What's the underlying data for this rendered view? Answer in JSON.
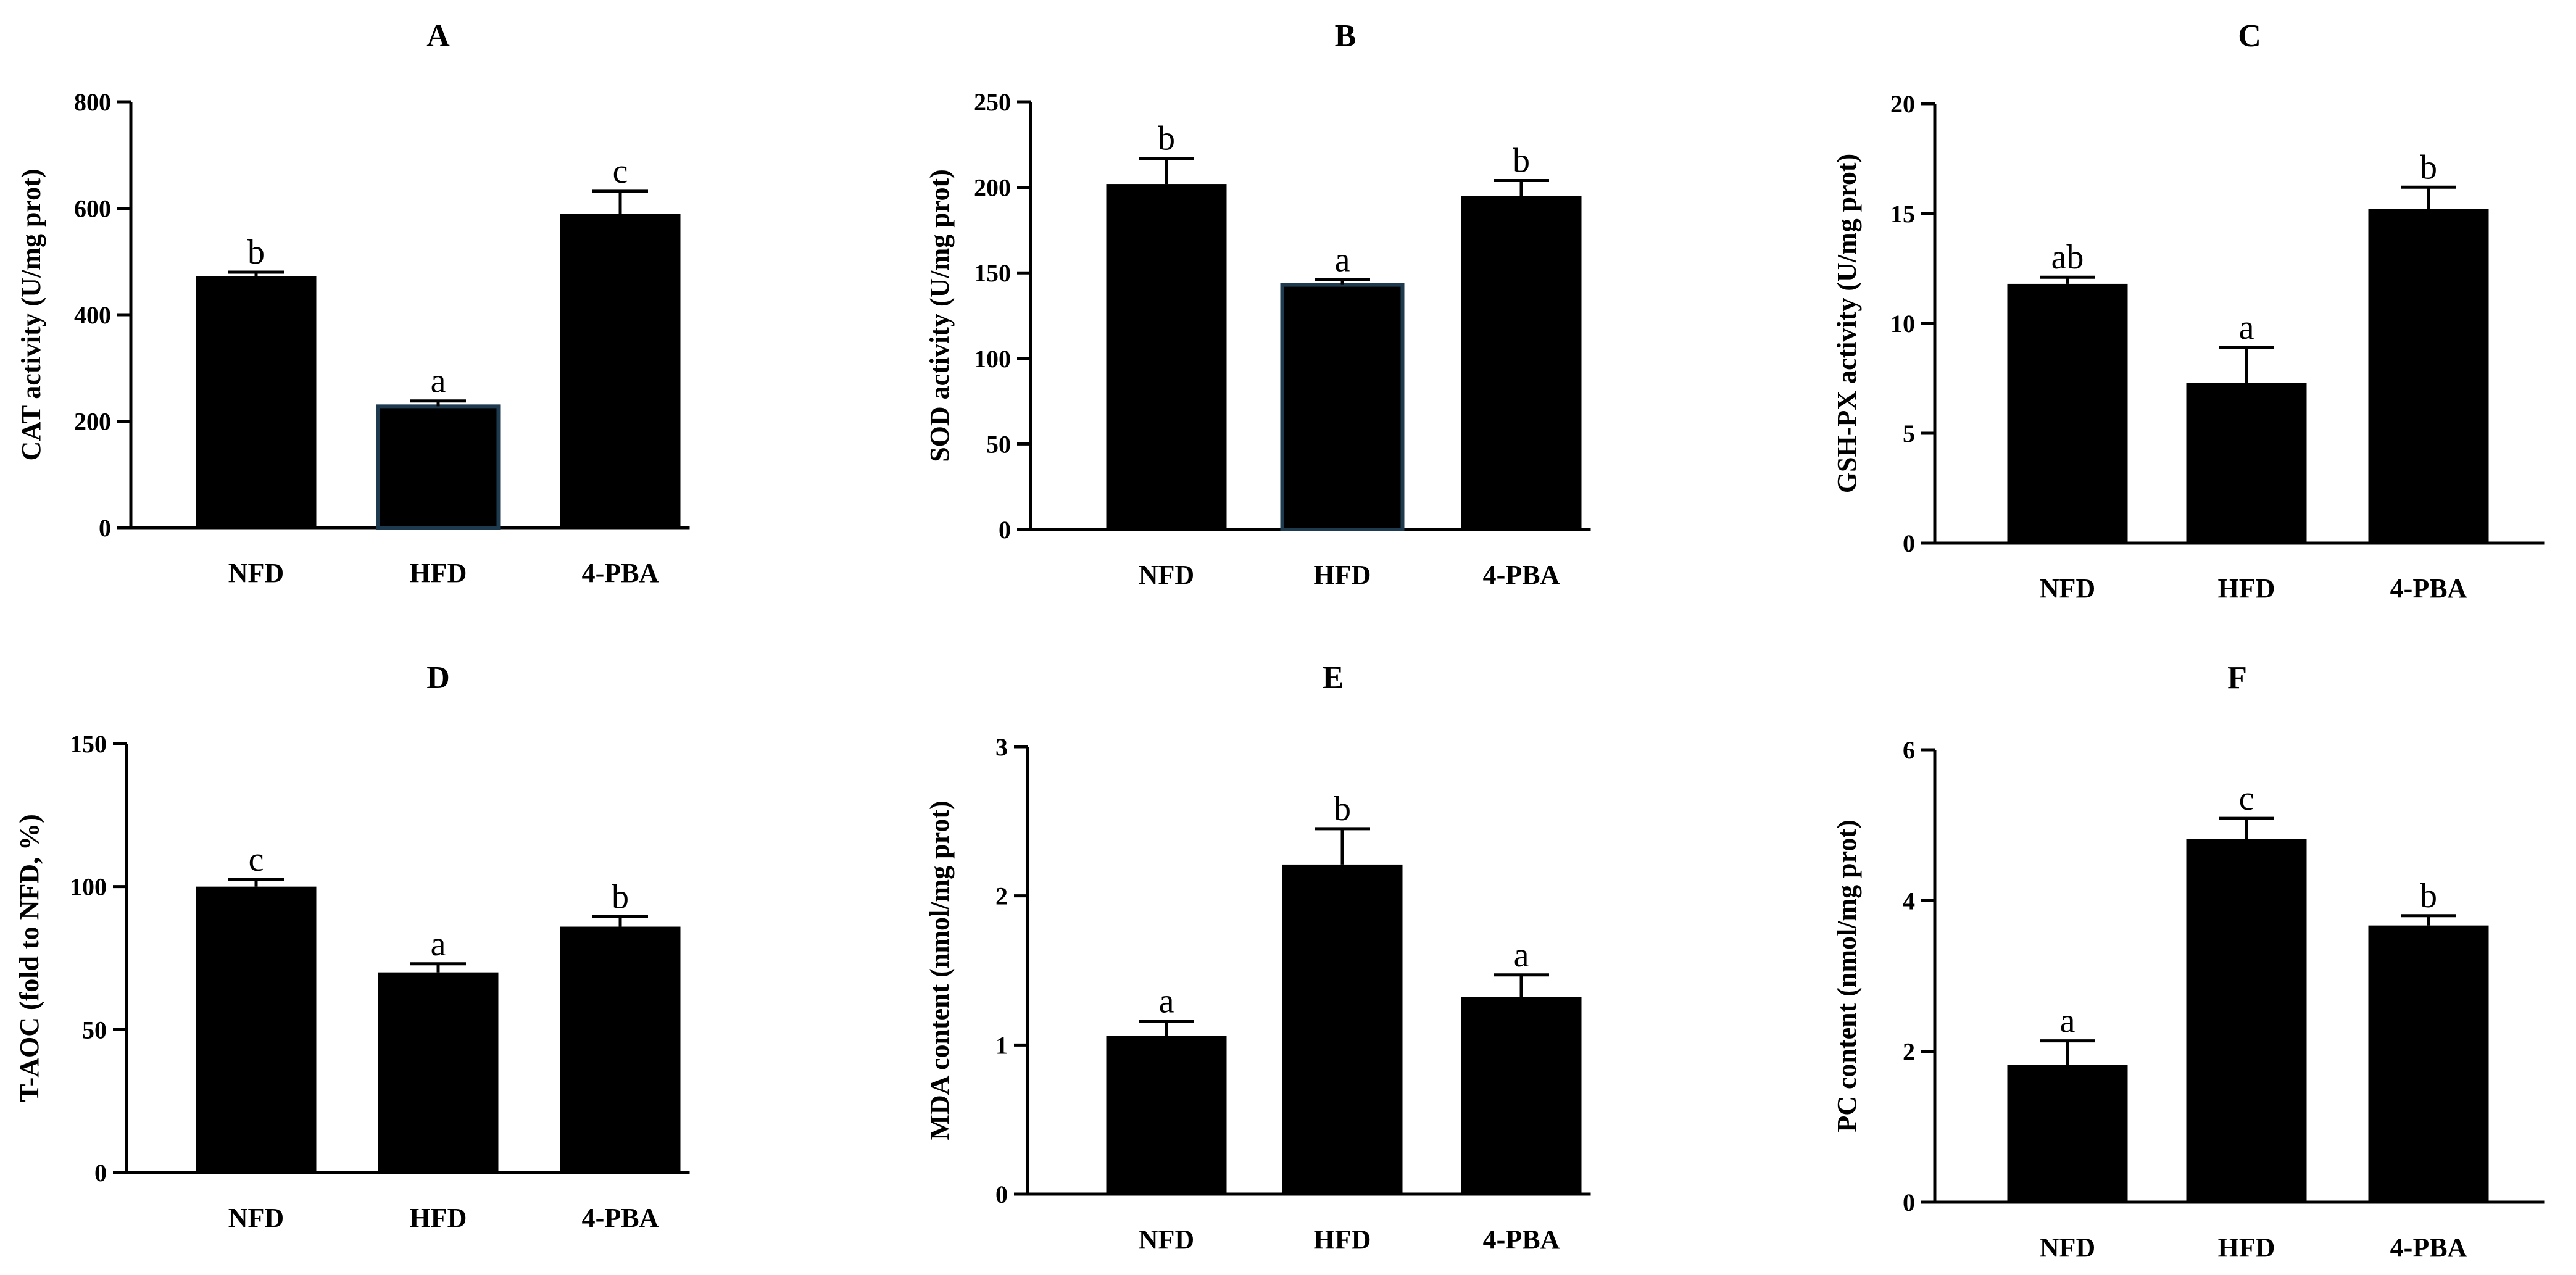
{
  "figure": {
    "bar_color": "#000000",
    "highlight_edge_color": "#1e3a4f",
    "text_color": "#000000"
  },
  "chart_data": [
    {
      "panel": "A",
      "type": "bar",
      "title": "A",
      "ylabel": "CAT activity (U/mg prot)",
      "categories": [
        "NFD",
        "HFD",
        "4-PBA"
      ],
      "values": [
        472,
        228,
        590
      ],
      "errors": [
        8,
        10,
        42
      ],
      "significance": [
        "b",
        "a",
        "c"
      ],
      "ylim": [
        0,
        800
      ],
      "yticks": [
        0,
        200,
        400,
        600,
        800
      ],
      "edge_highlight": [
        false,
        true,
        false
      ]
    },
    {
      "panel": "B",
      "type": "bar",
      "title": "B",
      "ylabel": "SOD activity  (U/mg prot)",
      "categories": [
        "NFD",
        "HFD",
        "4-PBA"
      ],
      "values": [
        202,
        143,
        195
      ],
      "errors": [
        15,
        3,
        9
      ],
      "significance": [
        "b",
        "a",
        "b"
      ],
      "ylim": [
        0,
        250
      ],
      "yticks": [
        0,
        50,
        100,
        150,
        200,
        250
      ],
      "edge_highlight": [
        false,
        true,
        false
      ]
    },
    {
      "panel": "C",
      "type": "bar",
      "title": "C",
      "ylabel": "GSH-PX activity (U/mg prot)",
      "categories": [
        "NFD",
        "HFD",
        "4-PBA"
      ],
      "values": [
        11.8,
        7.3,
        15.2
      ],
      "errors": [
        0.3,
        1.6,
        1.0
      ],
      "significance": [
        "ab",
        "a",
        "b"
      ],
      "ylim": [
        0,
        20
      ],
      "yticks": [
        0,
        5,
        10,
        15,
        20
      ],
      "edge_highlight": [
        false,
        false,
        false
      ]
    },
    {
      "panel": "D",
      "type": "bar",
      "title": "D",
      "ylabel": "T-AOC (fold to NFD, %)",
      "categories": [
        "NFD",
        "HFD",
        "4-PBA"
      ],
      "values": [
        100,
        70,
        86
      ],
      "errors": [
        2.5,
        3,
        3.5
      ],
      "significance": [
        "c",
        "a",
        "b"
      ],
      "ylim": [
        0,
        150
      ],
      "yticks": [
        0,
        50,
        100,
        150
      ],
      "edge_highlight": [
        false,
        false,
        false
      ]
    },
    {
      "panel": "E",
      "type": "bar",
      "title": "E",
      "ylabel": "MDA content (nmol/mg prot)",
      "categories": [
        "NFD",
        "HFD",
        "4-PBA"
      ],
      "values": [
        1.06,
        2.21,
        1.32
      ],
      "errors": [
        0.1,
        0.24,
        0.15
      ],
      "significance": [
        "a",
        "b",
        "a"
      ],
      "ylim": [
        0,
        3
      ],
      "yticks": [
        0,
        1,
        2,
        3
      ],
      "edge_highlight": [
        false,
        false,
        false
      ]
    },
    {
      "panel": "F",
      "type": "bar",
      "title": "F",
      "ylabel": "PC content (nmol/mg prot)",
      "categories": [
        "NFD",
        "HFD",
        "4-PBA"
      ],
      "values": [
        1.82,
        4.82,
        3.67
      ],
      "errors": [
        0.32,
        0.27,
        0.13
      ],
      "significance": [
        "a",
        "c",
        "b"
      ],
      "ylim": [
        0,
        6
      ],
      "yticks": [
        0,
        2,
        4,
        6
      ],
      "edge_highlight": [
        false,
        false,
        false
      ]
    }
  ]
}
